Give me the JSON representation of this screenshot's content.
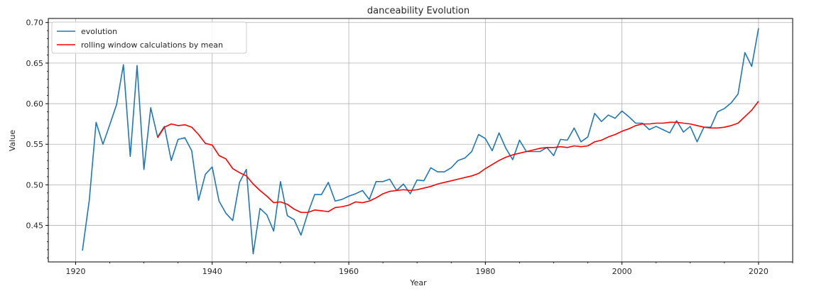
{
  "chart_data": {
    "type": "line",
    "title": "danceability Evolution",
    "xlabel": "Year",
    "ylabel": "Value",
    "xlim": [
      1916,
      2025
    ],
    "ylim": [
      0.405,
      0.705
    ],
    "xticks": [
      1920,
      1940,
      1960,
      1980,
      2000,
      2020
    ],
    "yticks": [
      0.45,
      0.5,
      0.55,
      0.6,
      0.65,
      0.7
    ],
    "xtick_labels": [
      "1920",
      "1940",
      "1960",
      "1980",
      "2000",
      "2020"
    ],
    "ytick_labels": [
      "0.45",
      "0.50",
      "0.55",
      "0.60",
      "0.65",
      "0.70"
    ],
    "grid": true,
    "legend_position": "top-left",
    "colors": {
      "evolution": "#1f77b4",
      "rolling": "#ff0000",
      "grid": "#b0b0b0"
    },
    "series": [
      {
        "name": "evolution",
        "x": [
          1921,
          1922,
          1923,
          1924,
          1925,
          1926,
          1927,
          1928,
          1929,
          1930,
          1931,
          1932,
          1933,
          1934,
          1935,
          1936,
          1937,
          1938,
          1939,
          1940,
          1941,
          1942,
          1943,
          1944,
          1945,
          1946,
          1947,
          1948,
          1949,
          1950,
          1951,
          1952,
          1953,
          1954,
          1955,
          1956,
          1957,
          1958,
          1959,
          1960,
          1961,
          1962,
          1963,
          1964,
          1965,
          1966,
          1967,
          1968,
          1969,
          1970,
          1971,
          1972,
          1973,
          1974,
          1975,
          1976,
          1977,
          1978,
          1979,
          1980,
          1981,
          1982,
          1983,
          1984,
          1985,
          1986,
          1987,
          1988,
          1989,
          1990,
          1991,
          1992,
          1993,
          1994,
          1995,
          1996,
          1997,
          1998,
          1999,
          2000,
          2001,
          2002,
          2003,
          2004,
          2005,
          2006,
          2007,
          2008,
          2009,
          2010,
          2011,
          2012,
          2013,
          2014,
          2015,
          2016,
          2017,
          2018,
          2019,
          2020
        ],
        "values": [
          0.419,
          0.481,
          0.577,
          0.55,
          0.574,
          0.599,
          0.648,
          0.535,
          0.647,
          0.519,
          0.595,
          0.559,
          0.572,
          0.53,
          0.556,
          0.558,
          0.542,
          0.481,
          0.513,
          0.522,
          0.48,
          0.465,
          0.456,
          0.503,
          0.519,
          0.415,
          0.471,
          0.463,
          0.443,
          0.504,
          0.462,
          0.457,
          0.438,
          0.465,
          0.488,
          0.488,
          0.503,
          0.48,
          0.482,
          0.486,
          0.489,
          0.493,
          0.482,
          0.504,
          0.504,
          0.507,
          0.493,
          0.501,
          0.489,
          0.506,
          0.505,
          0.521,
          0.516,
          0.516,
          0.521,
          0.53,
          0.533,
          0.541,
          0.562,
          0.557,
          0.542,
          0.564,
          0.545,
          0.531,
          0.555,
          0.541,
          0.541,
          0.541,
          0.546,
          0.536,
          0.556,
          0.555,
          0.57,
          0.553,
          0.559,
          0.588,
          0.578,
          0.586,
          0.582,
          0.591,
          0.584,
          0.576,
          0.576,
          0.568,
          0.572,
          0.568,
          0.564,
          0.579,
          0.565,
          0.572,
          0.553,
          0.571,
          0.571,
          0.59,
          0.594,
          0.601,
          0.612,
          0.663,
          0.646,
          0.693
        ]
      },
      {
        "name": "rolling window calculations by mean",
        "x": [
          1932,
          1933,
          1934,
          1935,
          1936,
          1937,
          1938,
          1939,
          1940,
          1941,
          1942,
          1943,
          1944,
          1945,
          1946,
          1947,
          1948,
          1949,
          1950,
          1951,
          1952,
          1953,
          1954,
          1955,
          1956,
          1957,
          1958,
          1959,
          1960,
          1961,
          1962,
          1963,
          1964,
          1965,
          1966,
          1967,
          1968,
          1969,
          1970,
          1971,
          1972,
          1973,
          1974,
          1975,
          1976,
          1977,
          1978,
          1979,
          1980,
          1981,
          1982,
          1983,
          1984,
          1985,
          1986,
          1987,
          1988,
          1989,
          1990,
          1991,
          1992,
          1993,
          1994,
          1995,
          1996,
          1997,
          1998,
          1999,
          2000,
          2001,
          2002,
          2003,
          2004,
          2005,
          2006,
          2007,
          2008,
          2009,
          2010,
          2011,
          2012,
          2013,
          2014,
          2015,
          2016,
          2017,
          2018,
          2019,
          2020
        ],
        "values": [
          0.558,
          0.571,
          0.575,
          0.573,
          0.574,
          0.571,
          0.562,
          0.551,
          0.549,
          0.536,
          0.532,
          0.52,
          0.515,
          0.511,
          0.501,
          0.493,
          0.486,
          0.478,
          0.479,
          0.476,
          0.47,
          0.466,
          0.466,
          0.469,
          0.468,
          0.467,
          0.472,
          0.473,
          0.475,
          0.479,
          0.478,
          0.48,
          0.484,
          0.489,
          0.492,
          0.493,
          0.494,
          0.493,
          0.494,
          0.496,
          0.498,
          0.501,
          0.503,
          0.505,
          0.507,
          0.509,
          0.511,
          0.514,
          0.52,
          0.525,
          0.53,
          0.534,
          0.537,
          0.539,
          0.541,
          0.543,
          0.545,
          0.546,
          0.546,
          0.547,
          0.546,
          0.548,
          0.547,
          0.548,
          0.553,
          0.555,
          0.559,
          0.562,
          0.566,
          0.569,
          0.573,
          0.575,
          0.575,
          0.576,
          0.576,
          0.577,
          0.577,
          0.576,
          0.575,
          0.573,
          0.571,
          0.57,
          0.57,
          0.571,
          0.573,
          0.576,
          0.584,
          0.592,
          0.603
        ]
      }
    ]
  }
}
